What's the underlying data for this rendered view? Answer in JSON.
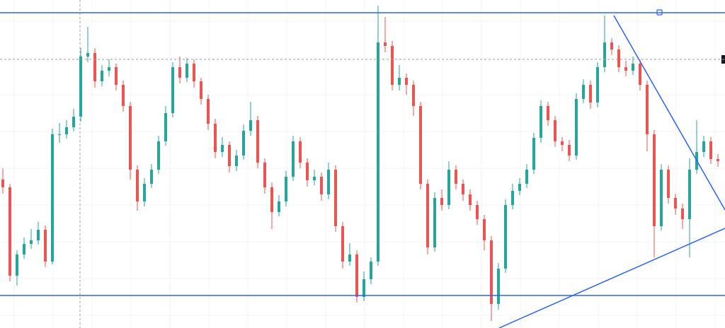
{
  "chart_data": {
    "type": "candlestick",
    "ylim": [
      0,
      464
    ],
    "grid": true,
    "up_color": "#26a69a",
    "down_color": "#ef5350",
    "level_color": "#2962ff",
    "levels": [
      446,
      46
    ],
    "dashed_level": 380,
    "open": [
      210,
      199,
      74,
      104,
      119,
      124,
      139,
      94,
      274,
      274,
      284,
      299,
      384,
      389,
      349,
      364,
      369,
      344,
      314,
      224,
      179,
      204,
      224,
      264,
      304,
      369,
      354,
      374,
      349,
      324,
      289,
      249,
      259,
      229,
      244,
      279,
      294,
      234,
      199,
      164,
      179,
      214,
      264,
      234,
      209,
      214,
      189,
      224,
      144,
      94,
      104,
      44,
      69,
      94,
      404,
      399,
      344,
      354,
      344,
      314,
      204,
      114,
      184,
      174,
      224,
      204,
      189,
      174,
      154,
      124,
      34,
      84,
      174,
      194,
      204,
      224,
      269,
      314,
      294,
      264,
      259,
      244,
      324,
      344,
      319,
      369,
      404,
      394,
      369,
      364,
      374,
      344,
      274,
      144,
      224,
      184,
      169,
      154,
      224,
      249,
      264,
      239
    ],
    "high": [
      226,
      204,
      110,
      128,
      140,
      150,
      145,
      282,
      290,
      294,
      310,
      396,
      426,
      396,
      372,
      380,
      374,
      350,
      320,
      230,
      212,
      232,
      272,
      314,
      376,
      384,
      382,
      380,
      354,
      330,
      296,
      270,
      264,
      252,
      288,
      320,
      300,
      240,
      206,
      188,
      222,
      272,
      270,
      240,
      224,
      220,
      234,
      230,
      150,
      120,
      110,
      80,
      100,
      456,
      440,
      406,
      372,
      360,
      350,
      320,
      210,
      192,
      196,
      236,
      230,
      210,
      196,
      180,
      160,
      130,
      92,
      182,
      204,
      212,
      232,
      276,
      322,
      320,
      300,
      270,
      266,
      332,
      352,
      350,
      376,
      442,
      410,
      400,
      378,
      384,
      380,
      350,
      280,
      232,
      230,
      190,
      176,
      240,
      294,
      272,
      270,
      246
    ],
    "low": [
      190,
      66,
      60,
      98,
      112,
      118,
      86,
      90,
      262,
      268,
      278,
      292,
      376,
      340,
      342,
      356,
      336,
      306,
      210,
      166,
      172,
      198,
      218,
      258,
      298,
      346,
      348,
      340,
      316,
      280,
      240,
      242,
      220,
      222,
      238,
      272,
      226,
      190,
      140,
      158,
      172,
      208,
      226,
      200,
      202,
      180,
      182,
      136,
      84,
      88,
      36,
      38,
      62,
      88,
      390,
      336,
      336,
      330,
      300,
      196,
      104,
      108,
      166,
      168,
      196,
      180,
      166,
      146,
      110,
      10,
      26,
      78,
      168,
      188,
      198,
      218,
      262,
      286,
      256,
      250,
      236,
      238,
      318,
      310,
      312,
      362,
      386,
      362,
      356,
      358,
      336,
      250,
      100,
      138,
      176,
      160,
      140,
      100,
      218,
      242,
      232,
      228
    ],
    "close": [
      199,
      74,
      104,
      119,
      124,
      139,
      94,
      274,
      274,
      284,
      299,
      384,
      389,
      349,
      364,
      369,
      344,
      314,
      224,
      179,
      204,
      224,
      264,
      304,
      369,
      354,
      374,
      349,
      324,
      289,
      249,
      259,
      229,
      244,
      279,
      294,
      234,
      199,
      164,
      179,
      214,
      264,
      234,
      209,
      214,
      189,
      224,
      144,
      94,
      104,
      44,
      69,
      94,
      404,
      399,
      344,
      354,
      344,
      314,
      204,
      114,
      184,
      174,
      224,
      204,
      189,
      174,
      154,
      124,
      34,
      84,
      174,
      194,
      204,
      224,
      269,
      314,
      294,
      264,
      259,
      244,
      324,
      344,
      319,
      369,
      404,
      394,
      369,
      364,
      374,
      344,
      274,
      144,
      224,
      184,
      169,
      154,
      224,
      249,
      264,
      239,
      236
    ]
  }
}
